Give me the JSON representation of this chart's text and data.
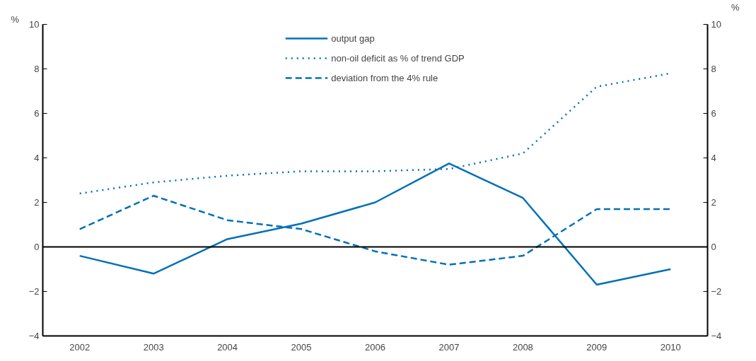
{
  "chart_data": {
    "type": "line",
    "ylabel": "%",
    "y2label": "%",
    "categories": [
      "2002",
      "2003",
      "2004",
      "2005",
      "2006",
      "2007",
      "2008",
      "2009",
      "2010"
    ],
    "series": [
      {
        "name": "output gap",
        "color": "#0070b8",
        "line_style": "solid",
        "values": [
          -0.4,
          -1.2,
          0.35,
          1.05,
          2.0,
          3.75,
          2.2,
          -1.7,
          -1.0
        ]
      },
      {
        "name": "non-oil deficit as % of trend GDP",
        "color": "#0070b8",
        "line_style": "dotted",
        "values": [
          2.4,
          2.9,
          3.2,
          3.4,
          3.4,
          3.5,
          4.2,
          7.2,
          7.8
        ]
      },
      {
        "name": "deviation from the 4% rule",
        "color": "#0070b8",
        "line_style": "dashed",
        "values": [
          0.8,
          2.3,
          1.2,
          0.8,
          -0.2,
          -0.8,
          -0.4,
          1.7,
          1.7
        ]
      }
    ],
    "ylim": [
      -4,
      10
    ],
    "yticks": [
      -4,
      -2,
      0,
      2,
      4,
      6,
      8,
      10
    ],
    "y2lim": [
      -4,
      10
    ],
    "y2ticks": [
      -4,
      -2,
      0,
      2,
      4,
      6,
      8,
      10
    ],
    "ref_lines": [
      {
        "axis": "y",
        "value": 0,
        "color": "#000000"
      }
    ],
    "grid": false,
    "legend": "top",
    "marker": "none"
  }
}
